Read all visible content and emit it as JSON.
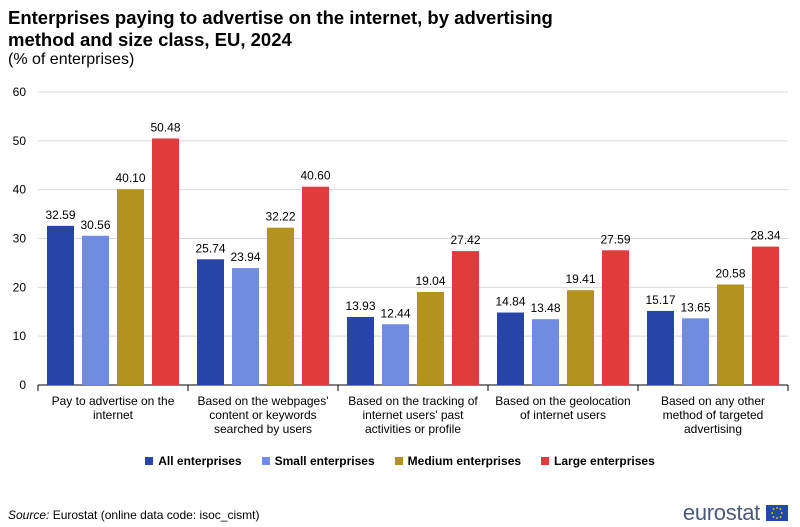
{
  "title": "Enterprises paying to advertise on the internet, by advertising method and size class, EU, 2024",
  "subtitle": "(% of enterprises)",
  "source_label": "Source:",
  "source_text": "Eurostat (online data code: isoc_cismt)",
  "logo_text": "eurostat",
  "colors": {
    "all": "#2944A8",
    "small": "#6F8CE0",
    "medium": "#B49220",
    "large": "#E03C3C",
    "grid": "#D9D9D9"
  },
  "chart_data": {
    "type": "bar",
    "title": "Enterprises paying to advertise on the internet, by advertising method and size class, EU, 2024",
    "ylabel": "% of enterprises",
    "ylim": [
      0,
      60
    ],
    "yticks": [
      0,
      10,
      20,
      30,
      40,
      50,
      60
    ],
    "categories": [
      [
        "Pay to advertise on the",
        "internet"
      ],
      [
        "Based on the webpages'",
        "content or keywords",
        "searched by users"
      ],
      [
        "Based on the tracking of",
        "internet users' past",
        "activities or profile"
      ],
      [
        "Based on the geolocation",
        "of internet users"
      ],
      [
        "Based on any other",
        "method of targeted",
        "advertising"
      ]
    ],
    "series": [
      {
        "name": "All enterprises",
        "color_key": "all",
        "values": [
          32.59,
          25.74,
          13.93,
          14.84,
          15.17
        ]
      },
      {
        "name": "Small enterprises",
        "color_key": "small",
        "values": [
          30.56,
          23.94,
          12.44,
          13.48,
          13.65
        ]
      },
      {
        "name": "Medium enterprises",
        "color_key": "medium",
        "values": [
          40.1,
          32.22,
          19.04,
          19.41,
          20.58
        ]
      },
      {
        "name": "Large enterprises",
        "color_key": "large",
        "values": [
          50.48,
          40.6,
          27.42,
          27.59,
          28.34
        ]
      }
    ],
    "legend_position": "bottom"
  }
}
